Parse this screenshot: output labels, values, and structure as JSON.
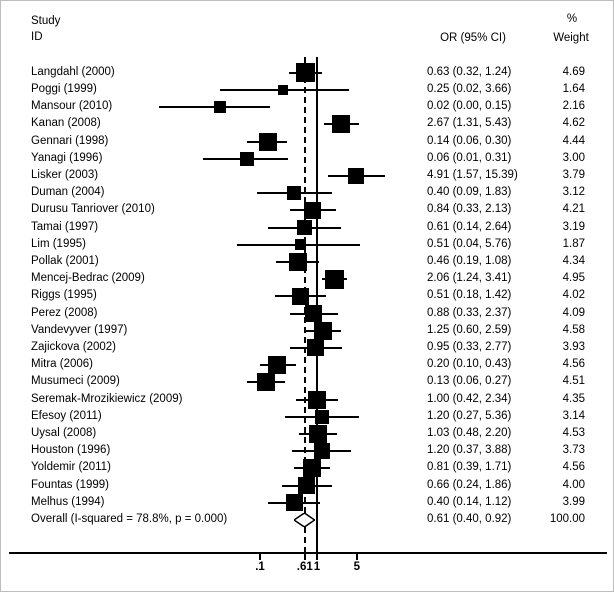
{
  "header": {
    "study_line1": "Study",
    "study_line2": "ID",
    "percent": "%",
    "or_ci": "OR (95% CI)",
    "weight": "Weight"
  },
  "chart_data": {
    "type": "forest",
    "scale": "log",
    "effect_measure": "OR (95% CI)",
    "null_value": 1,
    "dashed_line_value": 0.61,
    "x_ticks": [
      0.1,
      0.61,
      1,
      5
    ],
    "x_tick_labels": [
      ".1",
      ".61",
      "1",
      "5"
    ],
    "studies": [
      {
        "study": "Langdahl (2000)",
        "or": 0.63,
        "ci_low": 0.32,
        "ci_high": 1.24,
        "or_text": "0.63 (0.32, 1.24)",
        "weight": 4.69,
        "weight_text": "4.69"
      },
      {
        "study": "Poggi (1999)",
        "or": 0.25,
        "ci_low": 0.02,
        "ci_high": 3.66,
        "or_text": "0.25 (0.02, 3.66)",
        "weight": 1.64,
        "weight_text": "1.64"
      },
      {
        "study": "Mansour (2010)",
        "or": 0.02,
        "ci_low": 0.0,
        "ci_high": 0.15,
        "or_text": "0.02 (0.00, 0.15)",
        "weight": 2.16,
        "weight_text": "2.16"
      },
      {
        "study": "Kanan (2008)",
        "or": 2.67,
        "ci_low": 1.31,
        "ci_high": 5.43,
        "or_text": "2.67 (1.31, 5.43)",
        "weight": 4.62,
        "weight_text": "4.62"
      },
      {
        "study": "Gennari (1998)",
        "or": 0.14,
        "ci_low": 0.06,
        "ci_high": 0.3,
        "or_text": "0.14 (0.06, 0.30)",
        "weight": 4.44,
        "weight_text": "4.44"
      },
      {
        "study": "Yanagi (1996)",
        "or": 0.06,
        "ci_low": 0.01,
        "ci_high": 0.31,
        "or_text": "0.06 (0.01, 0.31)",
        "weight": 3.0,
        "weight_text": "3.00"
      },
      {
        "study": "Lisker (2003)",
        "or": 4.91,
        "ci_low": 1.57,
        "ci_high": 15.39,
        "or_text": "4.91 (1.57, 15.39)",
        "weight": 3.79,
        "weight_text": "3.79"
      },
      {
        "study": "Duman (2004)",
        "or": 0.4,
        "ci_low": 0.09,
        "ci_high": 1.83,
        "or_text": "0.40 (0.09, 1.83)",
        "weight": 3.12,
        "weight_text": "3.12"
      },
      {
        "study": "Durusu Tanriover (2010)",
        "or": 0.84,
        "ci_low": 0.33,
        "ci_high": 2.13,
        "or_text": "0.84 (0.33, 2.13)",
        "weight": 4.21,
        "weight_text": "4.21"
      },
      {
        "study": "Tamai (1997)",
        "or": 0.61,
        "ci_low": 0.14,
        "ci_high": 2.64,
        "or_text": "0.61 (0.14, 2.64)",
        "weight": 3.19,
        "weight_text": "3.19"
      },
      {
        "study": "Lim (1995)",
        "or": 0.51,
        "ci_low": 0.04,
        "ci_high": 5.76,
        "or_text": "0.51 (0.04, 5.76)",
        "weight": 1.87,
        "weight_text": "1.87"
      },
      {
        "study": "Pollak (2001)",
        "or": 0.46,
        "ci_low": 0.19,
        "ci_high": 1.08,
        "or_text": "0.46 (0.19, 1.08)",
        "weight": 4.34,
        "weight_text": "4.34"
      },
      {
        "study": "Mencej-Bedrac (2009)",
        "or": 2.06,
        "ci_low": 1.24,
        "ci_high": 3.41,
        "or_text": "2.06 (1.24, 3.41)",
        "weight": 4.95,
        "weight_text": "4.95"
      },
      {
        "study": "Riggs (1995)",
        "or": 0.51,
        "ci_low": 0.18,
        "ci_high": 1.42,
        "or_text": "0.51 (0.18, 1.42)",
        "weight": 4.02,
        "weight_text": "4.02"
      },
      {
        "study": "Perez (2008)",
        "or": 0.88,
        "ci_low": 0.33,
        "ci_high": 2.37,
        "or_text": "0.88 (0.33, 2.37)",
        "weight": 4.09,
        "weight_text": "4.09"
      },
      {
        "study": "Vandevyver (1997)",
        "or": 1.25,
        "ci_low": 0.6,
        "ci_high": 2.59,
        "or_text": "1.25 (0.60, 2.59)",
        "weight": 4.58,
        "weight_text": "4.58"
      },
      {
        "study": "Zajickova (2002)",
        "or": 0.95,
        "ci_low": 0.33,
        "ci_high": 2.77,
        "or_text": "0.95 (0.33, 2.77)",
        "weight": 3.93,
        "weight_text": "3.93"
      },
      {
        "study": "Mitra (2006)",
        "or": 0.2,
        "ci_low": 0.1,
        "ci_high": 0.43,
        "or_text": "0.20 (0.10, 0.43)",
        "weight": 4.56,
        "weight_text": "4.56"
      },
      {
        "study": "Musumeci (2009)",
        "or": 0.13,
        "ci_low": 0.06,
        "ci_high": 0.27,
        "or_text": "0.13 (0.06, 0.27)",
        "weight": 4.51,
        "weight_text": "4.51"
      },
      {
        "study": "Seremak-Mrozikiewicz (2009)",
        "or": 1.0,
        "ci_low": 0.42,
        "ci_high": 2.34,
        "or_text": "1.00 (0.42, 2.34)",
        "weight": 4.35,
        "weight_text": "4.35"
      },
      {
        "study": "Efesoy (2011)",
        "or": 1.2,
        "ci_low": 0.27,
        "ci_high": 5.36,
        "or_text": "1.20 (0.27, 5.36)",
        "weight": 3.14,
        "weight_text": "3.14"
      },
      {
        "study": "Uysal (2008)",
        "or": 1.03,
        "ci_low": 0.48,
        "ci_high": 2.2,
        "or_text": "1.03 (0.48, 2.20)",
        "weight": 4.53,
        "weight_text": "4.53"
      },
      {
        "study": "Houston (1996)",
        "or": 1.2,
        "ci_low": 0.37,
        "ci_high": 3.88,
        "or_text": "1.20 (0.37, 3.88)",
        "weight": 3.73,
        "weight_text": "3.73"
      },
      {
        "study": "Yoldemir (2011)",
        "or": 0.81,
        "ci_low": 0.39,
        "ci_high": 1.71,
        "or_text": "0.81 (0.39, 1.71)",
        "weight": 4.56,
        "weight_text": "4.56"
      },
      {
        "study": "Fountas (1999)",
        "or": 0.66,
        "ci_low": 0.24,
        "ci_high": 1.86,
        "or_text": "0.66 (0.24, 1.86)",
        "weight": 4.0,
        "weight_text": "4.00"
      },
      {
        "study": "Melhus (1994)",
        "or": 0.4,
        "ci_low": 0.14,
        "ci_high": 1.12,
        "or_text": "0.40 (0.14, 1.12)",
        "weight": 3.99,
        "weight_text": "3.99"
      }
    ],
    "overall": {
      "label": "Overall  (I-squared = 78.8%, p = 0.000)",
      "or": 0.61,
      "ci_low": 0.4,
      "ci_high": 0.92,
      "or_text": "0.61 (0.40, 0.92)",
      "weight_text": "100.00"
    },
    "heterogeneity": {
      "i_squared": "78.8%",
      "p_value": "0.000"
    }
  }
}
